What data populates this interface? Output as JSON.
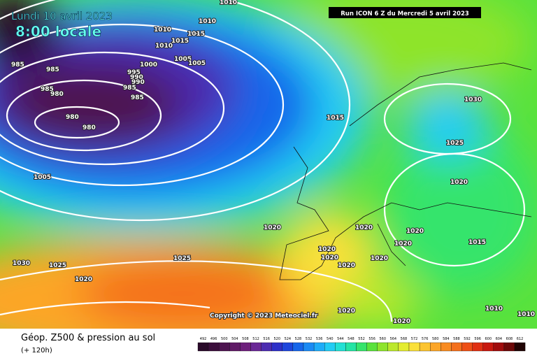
{
  "header": {
    "date": "Lundi 10 avril 2023",
    "time": "8:00 locale",
    "run": "Run ICON 6 Z du Mercredi 5 avril 2023"
  },
  "copyright": "Copyright © 2023 Meteociel.fr",
  "footer": {
    "title": "Géop. Z500 & pression au sol",
    "lead": "(+ 120h)"
  },
  "isobar_labels": [
    1010,
    1010,
    1010,
    1015,
    1010,
    1015,
    1005,
    1005,
    1000,
    985,
    985,
    995,
    990,
    985,
    990,
    985,
    985,
    980,
    980,
    980,
    1005,
    1015,
    1030,
    1025,
    1020,
    1020,
    1020,
    1020,
    1020,
    1015,
    1020,
    1020,
    1020,
    1020,
    1030,
    1025,
    1025,
    1020,
    1020,
    1020,
    1010,
    1010
  ],
  "scale": [
    {
      "value": 492,
      "color": "#2a0a2a"
    },
    {
      "value": 496,
      "color": "#3c0e3c"
    },
    {
      "value": 500,
      "color": "#4e1450"
    },
    {
      "value": 504,
      "color": "#601a66"
    },
    {
      "value": 508,
      "color": "#6e207c"
    },
    {
      "value": 512,
      "color": "#6a2896"
    },
    {
      "value": 516,
      "color": "#4c2cb0"
    },
    {
      "value": 520,
      "color": "#2e30c8"
    },
    {
      "value": 524,
      "color": "#1e46dc"
    },
    {
      "value": 528,
      "color": "#1666ea"
    },
    {
      "value": 532,
      "color": "#1a8af4"
    },
    {
      "value": 536,
      "color": "#1eacf8"
    },
    {
      "value": 540,
      "color": "#22ccf4"
    },
    {
      "value": 544,
      "color": "#22e0d4"
    },
    {
      "value": 548,
      "color": "#24e4a4"
    },
    {
      "value": 552,
      "color": "#36e46c"
    },
    {
      "value": 556,
      "color": "#5ae23c"
    },
    {
      "value": 560,
      "color": "#8ee42c"
    },
    {
      "value": 564,
      "color": "#bce82c"
    },
    {
      "value": 568,
      "color": "#e4ec30"
    },
    {
      "value": 572,
      "color": "#fae03a"
    },
    {
      "value": 576,
      "color": "#fcc430"
    },
    {
      "value": 580,
      "color": "#fca628"
    },
    {
      "value": 584,
      "color": "#f88c22"
    },
    {
      "value": 588,
      "color": "#f4701c"
    },
    {
      "value": 592,
      "color": "#ee5016"
    },
    {
      "value": 596,
      "color": "#e03012"
    },
    {
      "value": 600,
      "color": "#c8180e"
    },
    {
      "value": 604,
      "color": "#a00c0c"
    },
    {
      "value": 608,
      "color": "#6c0808"
    },
    {
      "value": 612,
      "color": "#200404"
    }
  ]
}
